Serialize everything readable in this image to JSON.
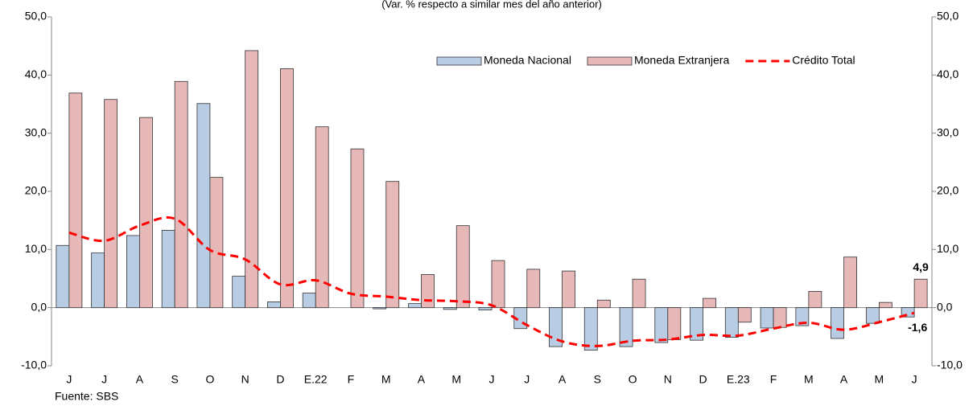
{
  "chart_data": {
    "type": "bar_line",
    "subtitle": "(Var. % respecto a similar mes del año anterior)",
    "source": "Fuente: SBS",
    "categories": [
      "J",
      "J",
      "A",
      "S",
      "O",
      "N",
      "D",
      "E.22",
      "F",
      "M",
      "A",
      "M",
      "J",
      "J",
      "A",
      "S",
      "O",
      "N",
      "D",
      "E.23",
      "F",
      "M",
      "A",
      "M",
      "J"
    ],
    "series": [
      {
        "name": "Moneda Nacional",
        "type": "bar",
        "color": "#b8cce4",
        "values": [
          10.7,
          9.4,
          12.4,
          13.3,
          35.1,
          5.4,
          1.0,
          2.5,
          0.0,
          -0.2,
          0.7,
          -0.3,
          -0.4,
          -3.6,
          -6.7,
          -7.3,
          -6.7,
          -6.0,
          -5.6,
          -5.1,
          -3.5,
          -3.1,
          -5.3,
          -2.7,
          -1.6
        ],
        "value_labels": [
          null,
          null,
          null,
          null,
          null,
          null,
          null,
          null,
          null,
          null,
          null,
          null,
          null,
          null,
          null,
          null,
          null,
          null,
          null,
          null,
          null,
          null,
          null,
          null,
          "-1,6"
        ]
      },
      {
        "name": "Moneda Extranjera",
        "type": "bar",
        "color": "#e6b9b8",
        "values": [
          36.9,
          35.8,
          32.7,
          38.9,
          22.4,
          44.2,
          41.1,
          31.1,
          27.3,
          21.7,
          5.7,
          14.1,
          8.1,
          6.6,
          6.3,
          1.3,
          4.9,
          -5.5,
          1.6,
          -2.5,
          -3.4,
          2.8,
          8.7,
          0.9,
          4.9
        ],
        "value_labels": [
          null,
          null,
          null,
          null,
          null,
          null,
          null,
          null,
          null,
          null,
          null,
          null,
          null,
          null,
          null,
          null,
          null,
          null,
          null,
          null,
          null,
          null,
          null,
          null,
          "4,9"
        ]
      },
      {
        "name": "Crédito Total",
        "type": "line",
        "color": "#ff0000",
        "values": [
          12.9,
          11.5,
          14.1,
          15.3,
          9.9,
          8.3,
          4.0,
          4.7,
          2.4,
          1.9,
          1.3,
          1.1,
          0.4,
          -3.0,
          -5.8,
          -6.6,
          -5.7,
          -5.5,
          -4.7,
          -4.8,
          -3.6,
          -2.6,
          -3.8,
          -2.5,
          -0.9
        ]
      }
    ],
    "ylim": [
      -10,
      50
    ],
    "yticks": [
      {
        "value": -10,
        "label": "-10,0"
      },
      {
        "value": 0,
        "label": "0,0"
      },
      {
        "value": 10,
        "label": "10,0"
      },
      {
        "value": 20,
        "label": "20,0"
      },
      {
        "value": 30,
        "label": "30,0"
      },
      {
        "value": 40,
        "label": "40,0"
      },
      {
        "value": 50,
        "label": "50,0"
      }
    ],
    "y2lim": [
      -10,
      50
    ],
    "y2ticks": [
      {
        "value": -10,
        "label": "-10,0"
      },
      {
        "value": 0,
        "label": "0,0"
      },
      {
        "value": 10,
        "label": "10,0"
      },
      {
        "value": 20,
        "label": "20,0"
      },
      {
        "value": 30,
        "label": "30,0"
      },
      {
        "value": 40,
        "label": "40,0"
      },
      {
        "value": 50,
        "label": "50,0"
      }
    ],
    "legend": "top-right",
    "grid": false
  }
}
